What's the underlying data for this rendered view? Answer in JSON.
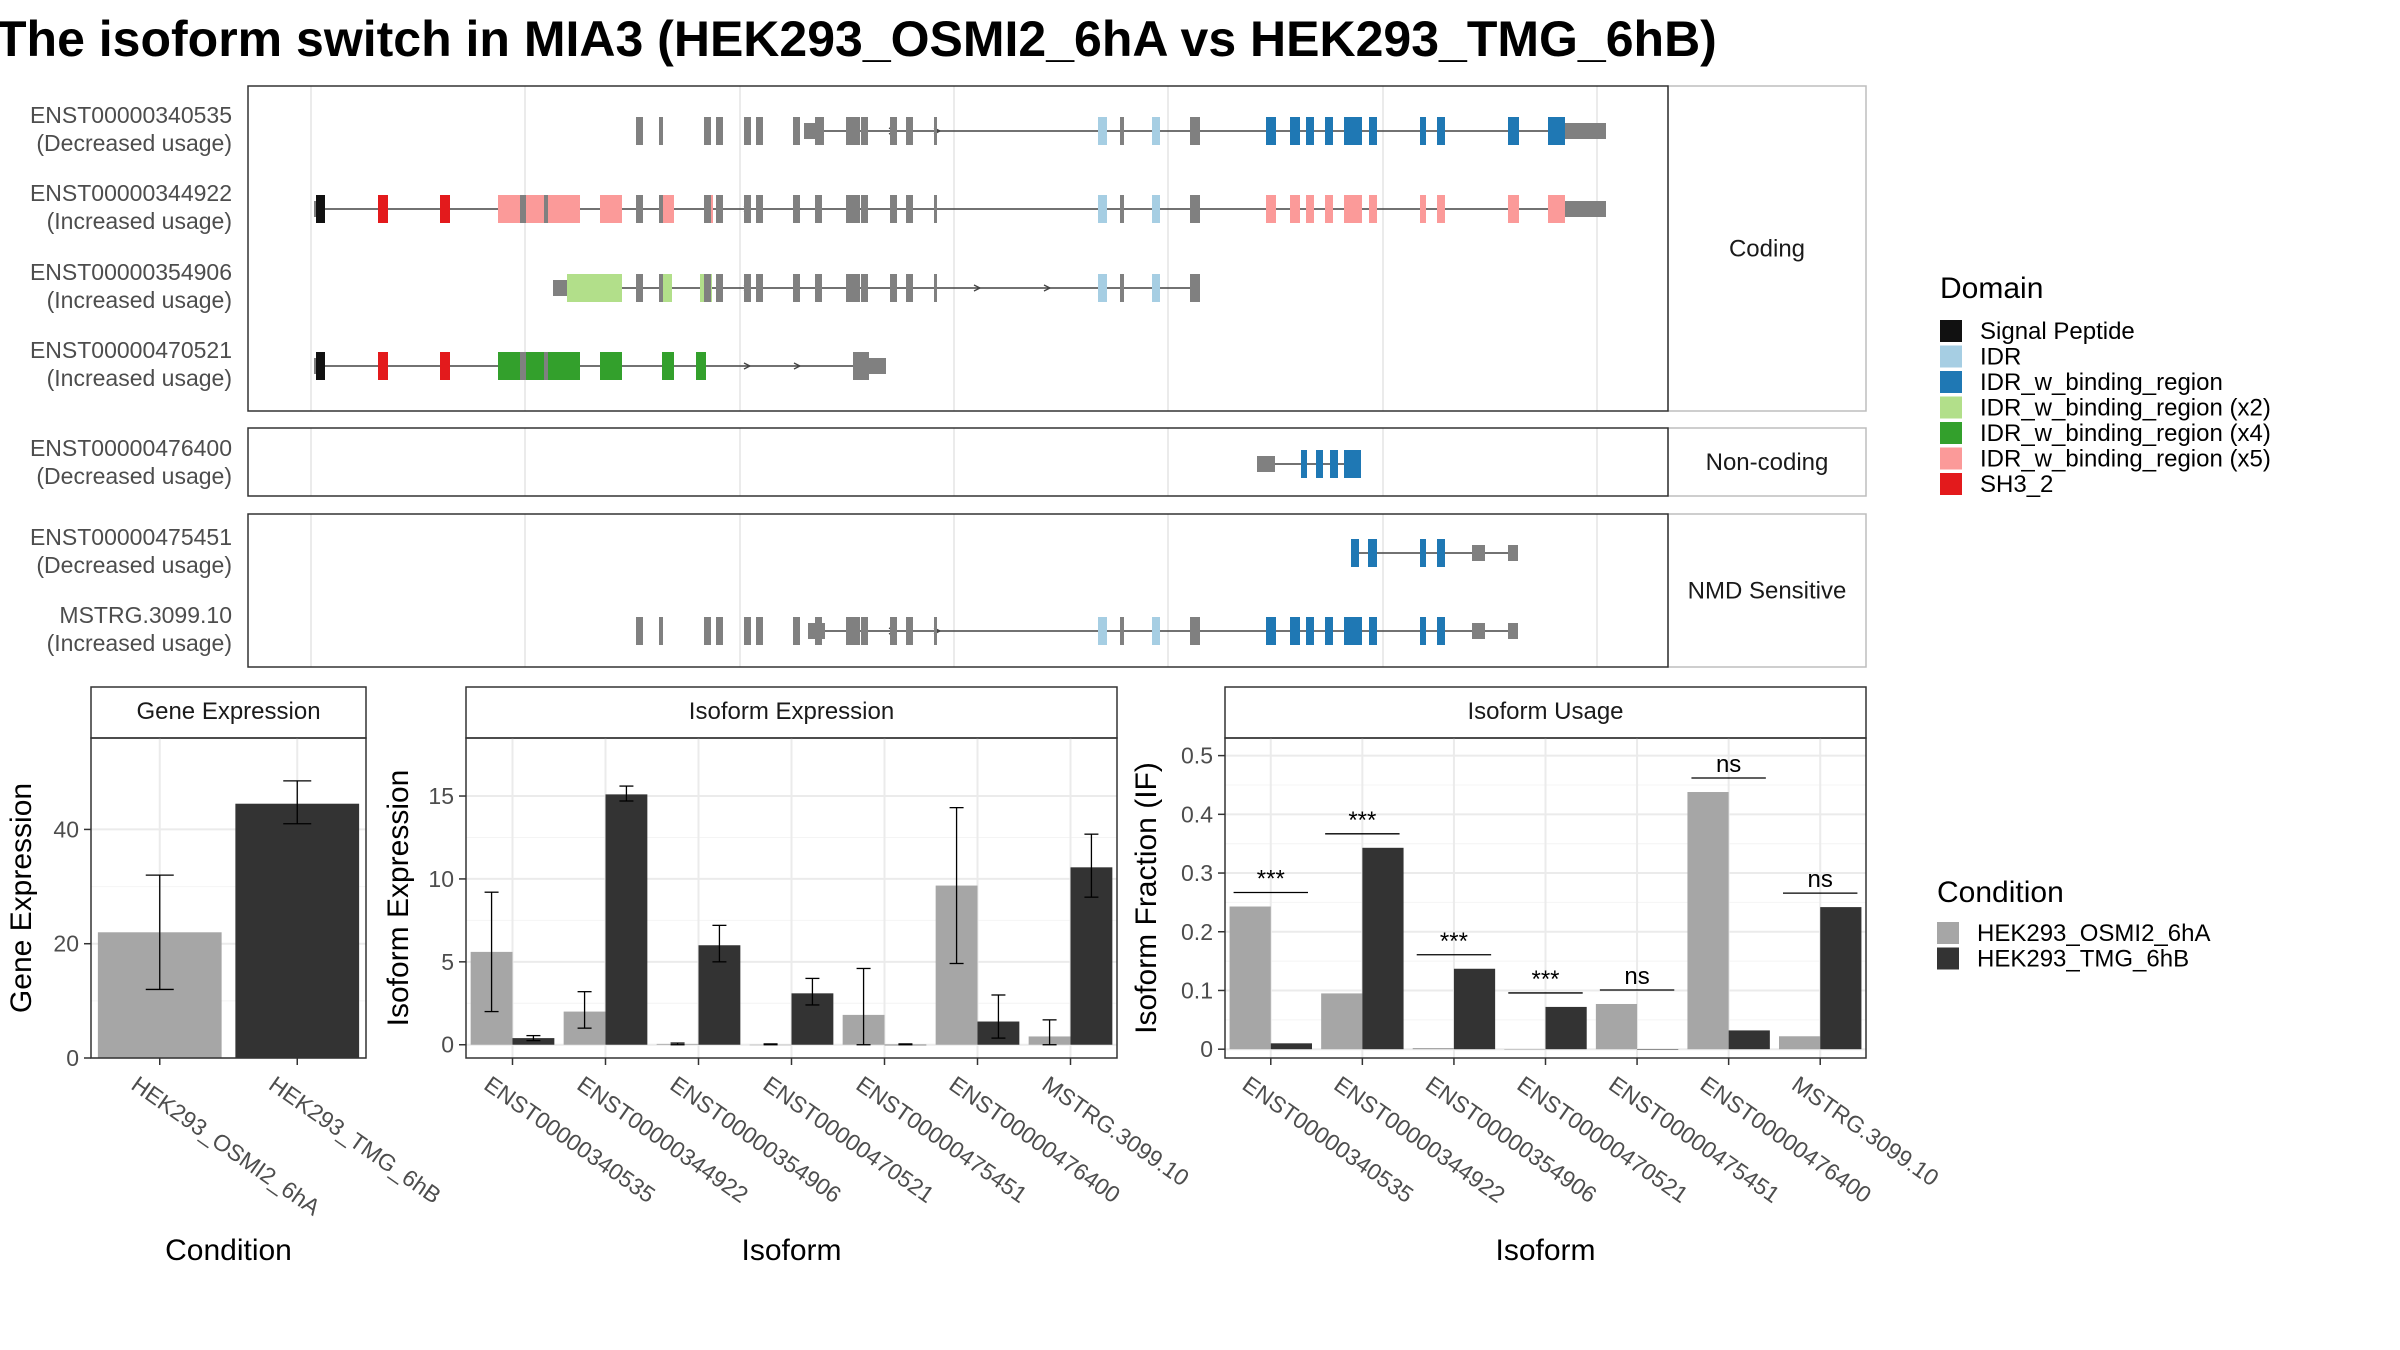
{
  "title": "The isoform switch in MIA3 (HEK293_OSMI2_6hA vs HEK293_TMG_6hB)",
  "colors": {
    "exon_grey": "#808080",
    "line": "#444444",
    "bar_a": "#a6a6a6",
    "bar_b": "#333333",
    "signal_peptide": "#111111",
    "idr": "#a6cee3",
    "idr_binding": "#1f78b4",
    "idr_binding_x2": "#b2df8a",
    "idr_binding_x4": "#33a02c",
    "idr_binding_x5": "#fb9a99",
    "sh3_2": "#e31a1c"
  },
  "structure": {
    "groups": [
      "Coding",
      "Non-coding",
      "NMD Sensitive"
    ],
    "transcripts": [
      {
        "id": "ENST00000340535",
        "usage": "(Decreased usage)",
        "group": "Coding"
      },
      {
        "id": "ENST00000344922",
        "usage": "(Increased usage)",
        "group": "Coding"
      },
      {
        "id": "ENST00000354906",
        "usage": "(Increased usage)",
        "group": "Coding"
      },
      {
        "id": "ENST00000470521",
        "usage": "(Increased usage)",
        "group": "Coding"
      },
      {
        "id": "ENST00000476400",
        "usage": "(Decreased usage)",
        "group": "Non-coding"
      },
      {
        "id": "ENST00000475451",
        "usage": "(Decreased usage)",
        "group": "NMD Sensitive"
      },
      {
        "id": "MSTRG.3099.10",
        "usage": "(Increased usage)",
        "group": "NMD Sensitive"
      }
    ]
  },
  "domain_legend": {
    "title": "Domain",
    "items": [
      {
        "label": "Signal Peptide",
        "color": "#111111"
      },
      {
        "label": "IDR",
        "color": "#a6cee3"
      },
      {
        "label": "IDR_w_binding_region",
        "color": "#1f78b4"
      },
      {
        "label": "IDR_w_binding_region (x2)",
        "color": "#b2df8a"
      },
      {
        "label": "IDR_w_binding_region (x4)",
        "color": "#33a02c"
      },
      {
        "label": "IDR_w_binding_region (x5)",
        "color": "#fb9a99"
      },
      {
        "label": "SH3_2",
        "color": "#e31a1c"
      }
    ]
  },
  "condition_legend": {
    "title": "Condition",
    "items": [
      {
        "label": "HEK293_OSMI2_6hA",
        "color": "#a6a6a6"
      },
      {
        "label": "HEK293_TMG_6hB",
        "color": "#333333"
      }
    ]
  },
  "chart_data": [
    {
      "type": "bar",
      "panel": "Gene Expression",
      "xlabel": "Condition",
      "ylabel": "Gene Expression",
      "ylim": [
        0,
        56
      ],
      "yticks": [
        0,
        20,
        40
      ],
      "categories": [
        "HEK293_OSMI2_6hA",
        "HEK293_TMG_6hB"
      ],
      "values": [
        22,
        44.5
      ],
      "errors": [
        [
          12,
          32
        ],
        [
          41,
          48.5
        ]
      ]
    },
    {
      "type": "bar",
      "panel": "Isoform Expression",
      "xlabel": "Isoform",
      "ylabel": "Isoform Expression",
      "ylim": [
        -0.8,
        18.5
      ],
      "yticks": [
        0,
        5,
        10,
        15
      ],
      "categories": [
        "ENST00000340535",
        "ENST00000344922",
        "ENST00000354906",
        "ENST00000470521",
        "ENST00000475451",
        "ENST00000476400",
        "MSTRG.3099.10"
      ],
      "series": [
        {
          "name": "HEK293_OSMI2_6hA",
          "values": [
            5.6,
            2.0,
            0.05,
            0.0,
            1.8,
            9.6,
            0.5
          ],
          "errors": [
            [
              2.0,
              9.2
            ],
            [
              1.0,
              3.2
            ],
            [
              0.0,
              0.1
            ],
            [
              0.0,
              0.05
            ],
            [
              0.0,
              4.6
            ],
            [
              4.9,
              14.3
            ],
            [
              0.0,
              1.5
            ]
          ]
        },
        {
          "name": "HEK293_TMG_6hB",
          "values": [
            0.4,
            15.1,
            6.0,
            3.1,
            0.0,
            1.4,
            10.7
          ],
          "errors": [
            [
              0.25,
              0.55
            ],
            [
              14.7,
              15.6
            ],
            [
              5.0,
              7.2
            ],
            [
              2.4,
              4.0
            ],
            [
              0.0,
              0.05
            ],
            [
              0.4,
              3.0
            ],
            [
              8.9,
              12.7
            ]
          ]
        }
      ]
    },
    {
      "type": "bar",
      "panel": "Isoform Usage",
      "xlabel": "Isoform",
      "ylabel": "Isoform Fraction (IF)",
      "ylim": [
        -0.015,
        0.53
      ],
      "yticks": [
        0.0,
        0.1,
        0.2,
        0.3,
        0.4,
        0.5
      ],
      "categories": [
        "ENST00000340535",
        "ENST00000344922",
        "ENST00000354906",
        "ENST00000470521",
        "ENST00000475451",
        "ENST00000476400",
        "MSTRG.3099.10"
      ],
      "series": [
        {
          "name": "HEK293_OSMI2_6hA",
          "values": [
            0.243,
            0.095,
            0.002,
            0.0,
            0.077,
            0.438,
            0.022
          ]
        },
        {
          "name": "HEK293_TMG_6hB",
          "values": [
            0.01,
            0.343,
            0.137,
            0.072,
            0.0,
            0.032,
            0.242
          ]
        }
      ],
      "significance": [
        "***",
        "***",
        "***",
        "***",
        "ns",
        "ns",
        "ns"
      ]
    }
  ]
}
